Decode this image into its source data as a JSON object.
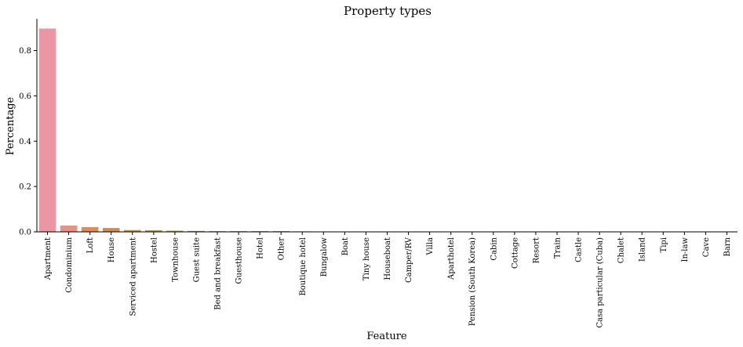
{
  "chart_data": {
    "type": "bar",
    "title": "Property types",
    "xlabel": "Feature",
    "ylabel": "Percentage",
    "ylim": [
      0,
      0.94
    ],
    "yticks": [
      0.0,
      0.2,
      0.4,
      0.6,
      0.8
    ],
    "ytick_labels": [
      "0.0",
      "0.2",
      "0.4",
      "0.6",
      "0.8"
    ],
    "grid": false,
    "categories": [
      "Apartment",
      "Condominium",
      "Loft",
      "House",
      "Serviced apartment",
      "Hostel",
      "Townhouse",
      "Guest suite",
      "Bed and breakfast",
      "Guesthouse",
      "Hotel",
      "Other",
      "Boutique hotel",
      "Bungalow",
      "Boat",
      "Tiny house",
      "Houseboat",
      "Camper/RV",
      "Villa",
      "Aparthotel",
      "Pension (South Korea)",
      "Cabin",
      "Cottage",
      "Resort",
      "Train",
      "Castle",
      "Casa particular (Cuba)",
      "Chalet",
      "Island",
      "Tipi",
      "In-law",
      "Cave",
      "Barn"
    ],
    "values": [
      0.897,
      0.028,
      0.021,
      0.017,
      0.008,
      0.007,
      0.005,
      0.004,
      0.003,
      0.003,
      0.003,
      0.003,
      0.002,
      0.001,
      0.0005,
      0.0005,
      0.0004,
      0.0004,
      0.0003,
      0.0003,
      0.0003,
      0.0002,
      0.0002,
      0.0002,
      0.0001,
      0.0001,
      0.0001,
      0.0001,
      0.0001,
      0.0001,
      0.0001,
      0.0001,
      0.0001
    ],
    "colors": [
      "#ea96a3",
      "#e59385",
      "#dd8c5d",
      "#d08c4f",
      "#c0953f",
      "#b09b3f",
      "#a09f3f",
      "#8fa33f",
      "#78a93f",
      "#55ae45",
      "#3dad6c",
      "#3eab86",
      "#3faa97",
      "#40a8a2",
      "#41a7ab",
      "#42a6b4",
      "#44a5be",
      "#46a3c8",
      "#4aa1d5",
      "#5c9ee0",
      "#7a97e5",
      "#9a8ee8",
      "#b384e9",
      "#c67ae7",
      "#d470e0",
      "#df6ed1",
      "#e770c0",
      "#eb76b0",
      "#ec7ca0",
      "#ec8295",
      "#eb888c",
      "#ea8e8a",
      "#e99290"
    ]
  }
}
